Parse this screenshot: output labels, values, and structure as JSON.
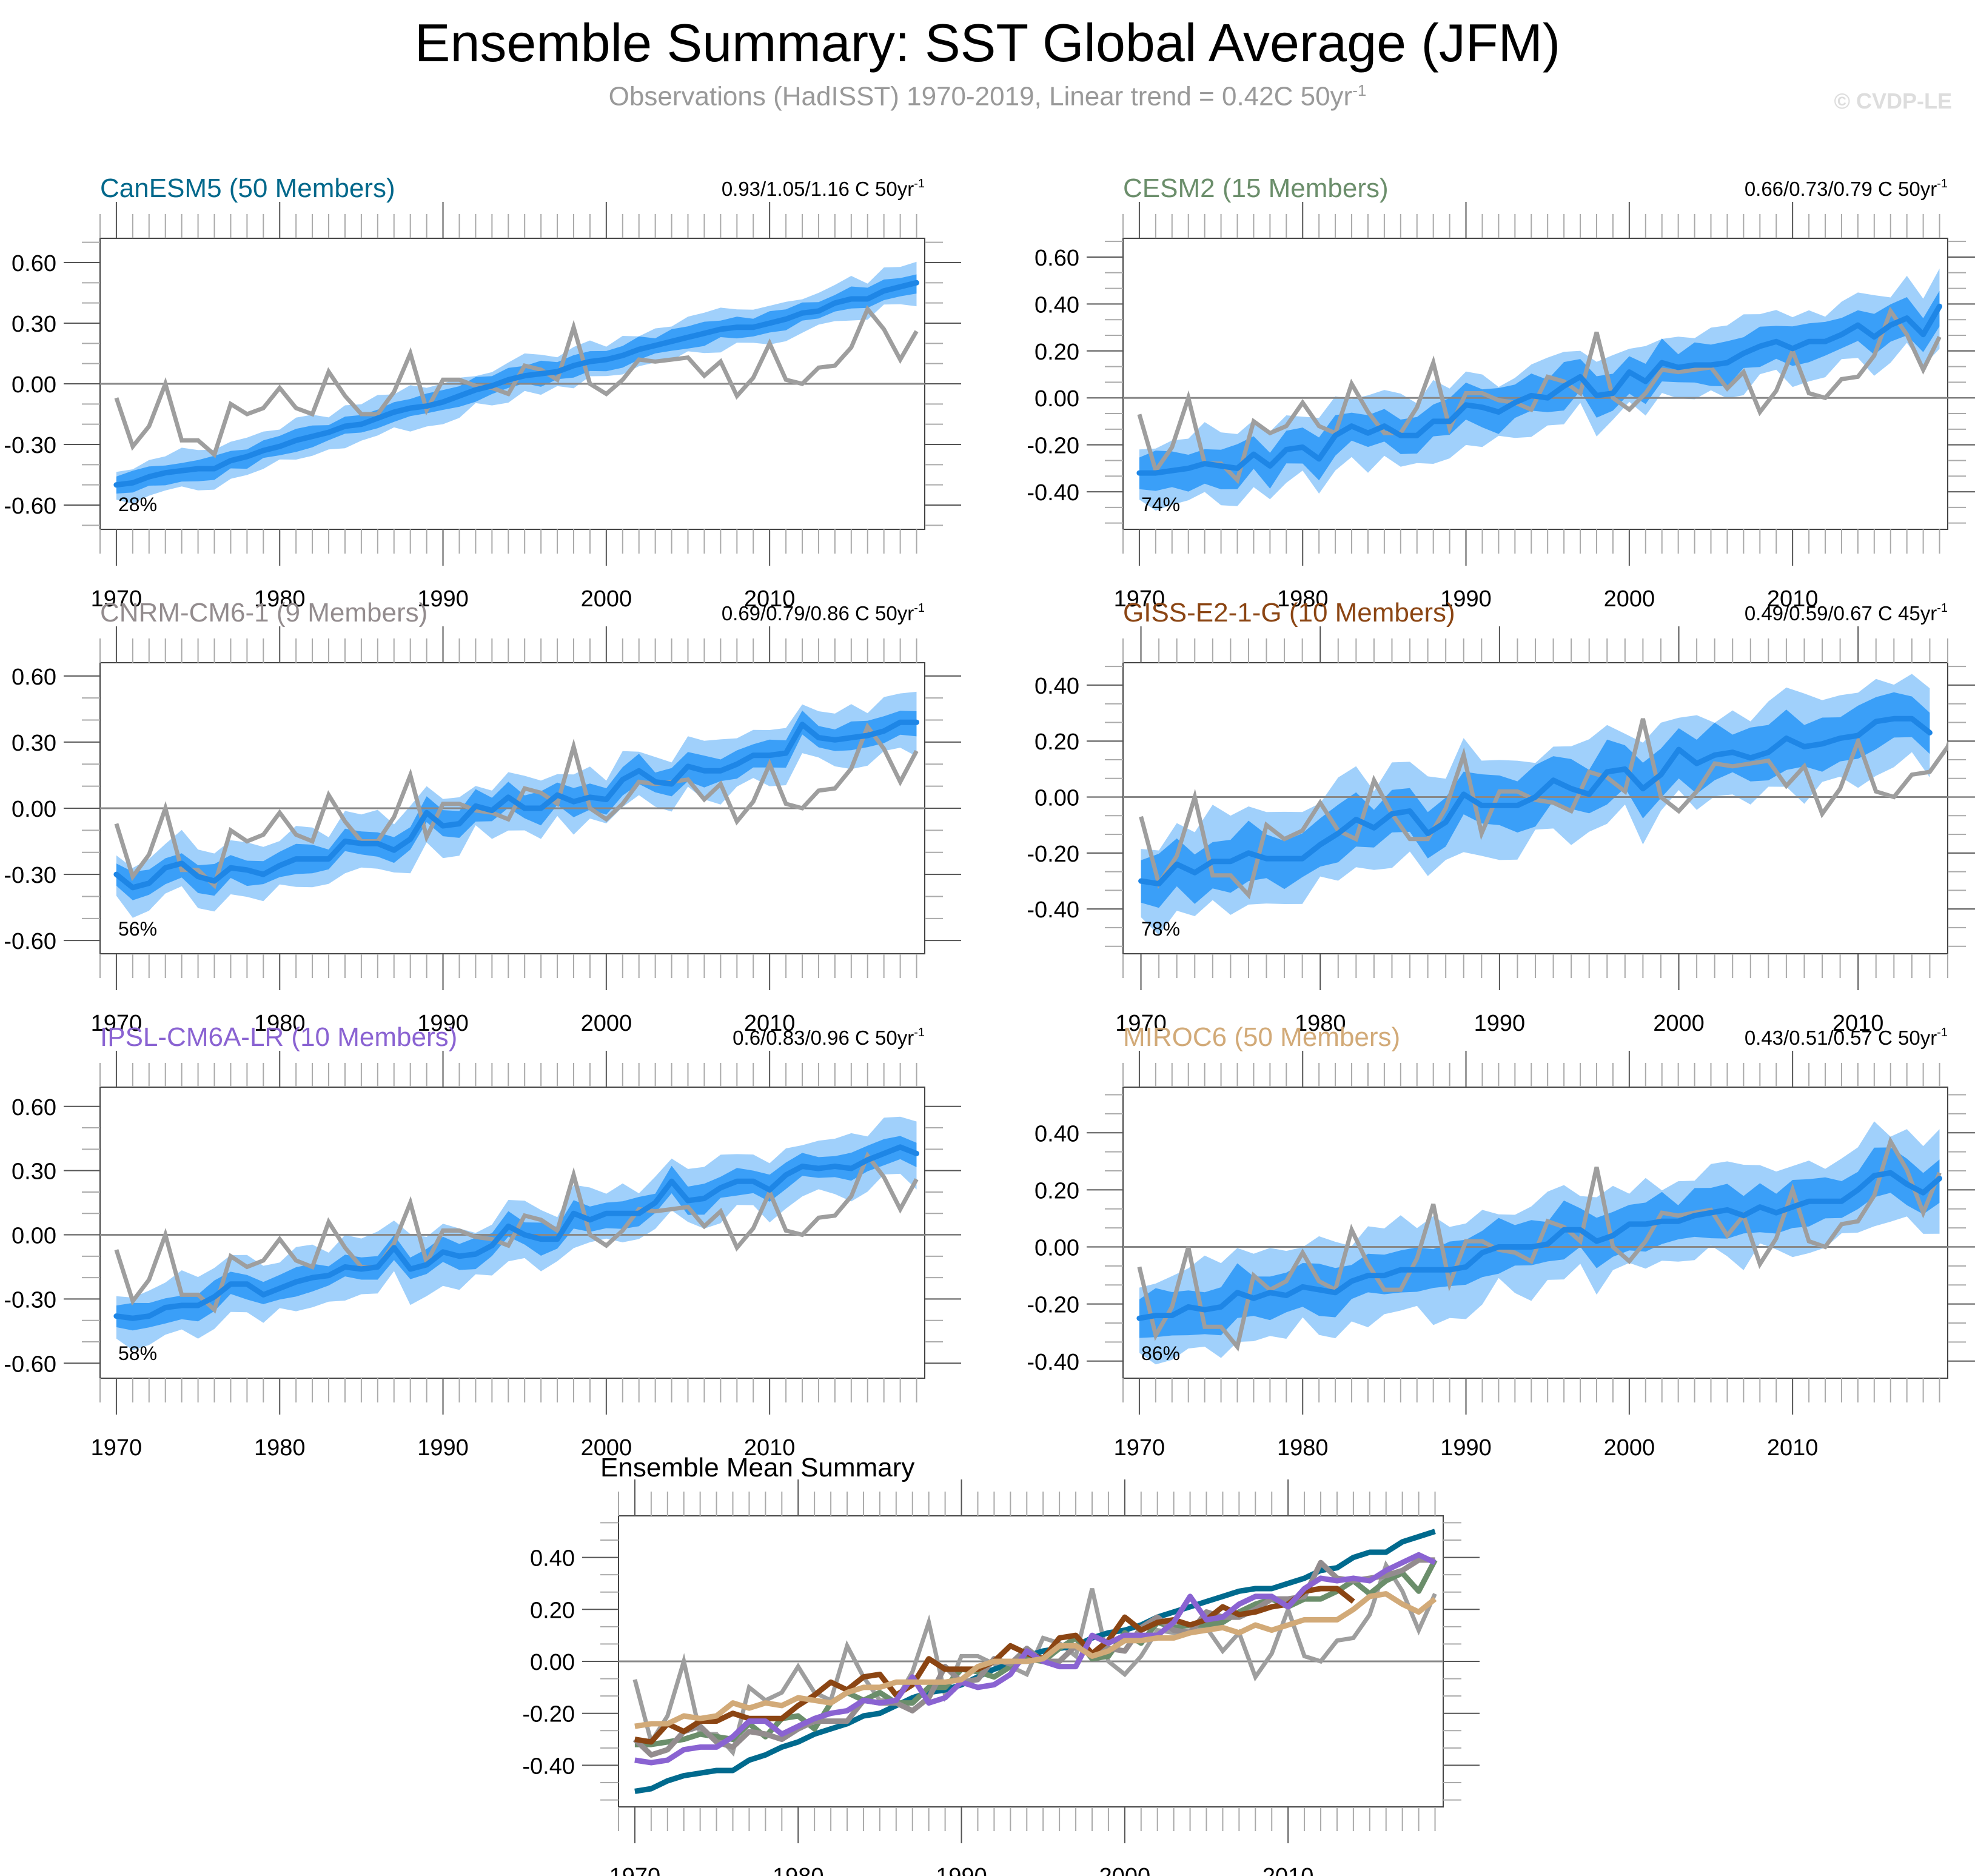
{
  "header": {
    "title": "Ensemble Summary: SST Global Average (JFM)",
    "subtitle_main": "Observations (HadISST) 1970-2019, Linear trend = 0.42C 50yr",
    "subtitle_sup": "-1",
    "watermark": "© CVDP-LE"
  },
  "chart_data": {
    "type": "line",
    "observations": {
      "name": "HadISST",
      "color": "#9e9e9e",
      "x_start": 1970,
      "values": [
        -0.07,
        -0.31,
        -0.21,
        0.0,
        -0.28,
        -0.28,
        -0.35,
        -0.1,
        -0.15,
        -0.12,
        -0.02,
        -0.12,
        -0.15,
        0.06,
        -0.06,
        -0.15,
        -0.15,
        -0.04,
        0.15,
        -0.13,
        0.02,
        0.02,
        -0.01,
        -0.02,
        -0.05,
        0.09,
        0.07,
        0.02,
        0.28,
        0.0,
        -0.05,
        0.02,
        0.12,
        0.11,
        0.12,
        0.13,
        0.04,
        0.11,
        -0.06,
        0.03,
        0.2,
        0.02,
        0.0,
        0.08,
        0.09,
        0.18,
        0.37,
        0.27,
        0.12,
        0.26
      ]
    },
    "band_colors": {
      "outer": "#a0d0fb",
      "inner": "#3a9ff8",
      "mean": "#1e86e6",
      "zero": "#888888"
    },
    "panels": [
      {
        "title": "CanESM5 (50 Members)",
        "title_color": "#00688b",
        "trend": "0.93/1.05/1.16 C 50yr",
        "trend_sup": "-1",
        "percent": "28%",
        "xlim": [
          1969,
          2019.5
        ],
        "ylim": [
          -0.72,
          0.72
        ],
        "yticks": [
          -0.6,
          -0.3,
          0.0,
          0.3,
          0.6
        ],
        "ytick_labels": [
          "-0.60",
          "-0.30",
          "0.00",
          "0.30",
          "0.60"
        ],
        "xticks": [
          1970,
          1980,
          1990,
          2000,
          2010
        ],
        "xtick_labels": [
          "1970",
          "1980",
          "1990",
          "2000",
          "2010"
        ],
        "x_start": 1970,
        "mean": [
          -0.5,
          -0.49,
          -0.46,
          -0.44,
          -0.43,
          -0.42,
          -0.42,
          -0.38,
          -0.36,
          -0.33,
          -0.31,
          -0.28,
          -0.26,
          -0.24,
          -0.21,
          -0.2,
          -0.17,
          -0.14,
          -0.12,
          -0.11,
          -0.09,
          -0.06,
          -0.03,
          -0.01,
          0.02,
          0.04,
          0.05,
          0.06,
          0.09,
          0.11,
          0.12,
          0.14,
          0.17,
          0.19,
          0.21,
          0.23,
          0.25,
          0.27,
          0.28,
          0.28,
          0.3,
          0.32,
          0.35,
          0.36,
          0.4,
          0.42,
          0.42,
          0.46,
          0.48,
          0.5
        ],
        "inner_half": 0.05,
        "outer_half": 0.09
      },
      {
        "title": "CESM2 (15 Members)",
        "title_color": "#6b8e6b",
        "trend": "0.66/0.73/0.79 C 50yr",
        "trend_sup": "-1",
        "percent": "74%",
        "xlim": [
          1969,
          2019.5
        ],
        "ylim": [
          -0.56,
          0.68
        ],
        "yticks": [
          -0.4,
          -0.2,
          0.0,
          0.2,
          0.4,
          0.6
        ],
        "ytick_labels": [
          "-0.40",
          "-0.20",
          "0.00",
          "0.20",
          "0.40",
          "0.60"
        ],
        "xticks": [
          1970,
          1980,
          1990,
          2000,
          2010
        ],
        "xtick_labels": [
          "1970",
          "1980",
          "1990",
          "2000",
          "2010"
        ],
        "x_start": 1970,
        "mean": [
          -0.32,
          -0.32,
          -0.31,
          -0.3,
          -0.28,
          -0.29,
          -0.3,
          -0.24,
          -0.29,
          -0.22,
          -0.21,
          -0.26,
          -0.16,
          -0.12,
          -0.15,
          -0.12,
          -0.16,
          -0.16,
          -0.1,
          -0.1,
          -0.03,
          -0.04,
          -0.06,
          -0.02,
          0.01,
          0.0,
          0.05,
          0.09,
          0.01,
          0.02,
          0.11,
          0.07,
          0.15,
          0.13,
          0.14,
          0.14,
          0.15,
          0.19,
          0.22,
          0.24,
          0.21,
          0.24,
          0.24,
          0.27,
          0.31,
          0.26,
          0.31,
          0.34,
          0.27,
          0.39
        ],
        "inner_half": 0.08,
        "outer_half": 0.14
      },
      {
        "title": "CNRM-CM6-1 (9 Members)",
        "title_color": "#938c8e",
        "trend": "0.69/0.79/0.86 C 50yr",
        "trend_sup": "-1",
        "percent": "56%",
        "xlim": [
          1969,
          2019.5
        ],
        "ylim": [
          -0.66,
          0.66
        ],
        "yticks": [
          -0.6,
          -0.3,
          0.0,
          0.3,
          0.6
        ],
        "ytick_labels": [
          "-0.60",
          "-0.30",
          "0.00",
          "0.30",
          "0.60"
        ],
        "xticks": [
          1970,
          1980,
          1990,
          2000,
          2010
        ],
        "xtick_labels": [
          "1970",
          "1980",
          "1990",
          "2000",
          "2010"
        ],
        "x_start": 1970,
        "mean": [
          -0.3,
          -0.36,
          -0.34,
          -0.27,
          -0.25,
          -0.31,
          -0.33,
          -0.27,
          -0.28,
          -0.3,
          -0.26,
          -0.23,
          -0.23,
          -0.23,
          -0.15,
          -0.16,
          -0.16,
          -0.19,
          -0.14,
          -0.02,
          -0.08,
          -0.07,
          0.01,
          -0.01,
          0.05,
          0.0,
          0.0,
          0.06,
          0.03,
          0.05,
          0.04,
          0.13,
          0.17,
          0.12,
          0.11,
          0.19,
          0.17,
          0.17,
          0.2,
          0.24,
          0.24,
          0.25,
          0.38,
          0.32,
          0.31,
          0.32,
          0.33,
          0.35,
          0.39,
          0.39
        ],
        "inner_half": 0.06,
        "outer_half": 0.12
      },
      {
        "title": "GISS-E2-1-G (10 Members)",
        "title_color": "#8b4513",
        "trend": "0.49/0.59/0.67 C 45yr",
        "trend_sup": "-1",
        "percent": "78%",
        "xlim": [
          1969,
          2015
        ],
        "ylim": [
          -0.56,
          0.48
        ],
        "yticks": [
          -0.4,
          -0.2,
          0.0,
          0.2,
          0.4
        ],
        "ytick_labels": [
          "-0.40",
          "-0.20",
          "0.00",
          "0.20",
          "0.40"
        ],
        "xticks": [
          1970,
          1980,
          1990,
          2000,
          2010
        ],
        "xtick_labels": [
          "1970",
          "1980",
          "1990",
          "2000",
          "2010"
        ],
        "x_start": 1970,
        "mean": [
          -0.3,
          -0.31,
          -0.24,
          -0.27,
          -0.23,
          -0.23,
          -0.2,
          -0.22,
          -0.22,
          -0.22,
          -0.17,
          -0.13,
          -0.08,
          -0.11,
          -0.06,
          -0.05,
          -0.13,
          -0.09,
          0.01,
          -0.03,
          -0.03,
          -0.03,
          0.0,
          0.06,
          0.03,
          0.01,
          0.09,
          0.1,
          0.03,
          0.08,
          0.17,
          0.12,
          0.15,
          0.16,
          0.14,
          0.16,
          0.21,
          0.18,
          0.19,
          0.21,
          0.22,
          0.27,
          0.28,
          0.28,
          0.23
        ],
        "inner_half": 0.09,
        "outer_half": 0.16
      },
      {
        "title": "IPSL-CM6A-LR (10 Members)",
        "title_color": "#8a63d2",
        "trend": "0.6/0.83/0.96 C 50yr",
        "trend_sup": "-1",
        "percent": "58%",
        "xlim": [
          1969,
          2019.5
        ],
        "ylim": [
          -0.67,
          0.69
        ],
        "yticks": [
          -0.6,
          -0.3,
          0.0,
          0.3,
          0.6
        ],
        "ytick_labels": [
          "-0.60",
          "-0.30",
          "0.00",
          "0.30",
          "0.60"
        ],
        "xticks": [
          1970,
          1980,
          1990,
          2000,
          2010
        ],
        "xtick_labels": [
          "1970",
          "1980",
          "1990",
          "2000",
          "2010"
        ],
        "x_start": 1970,
        "mean": [
          -0.38,
          -0.39,
          -0.38,
          -0.34,
          -0.33,
          -0.33,
          -0.29,
          -0.23,
          -0.23,
          -0.28,
          -0.25,
          -0.22,
          -0.2,
          -0.19,
          -0.15,
          -0.16,
          -0.15,
          -0.06,
          -0.16,
          -0.14,
          -0.08,
          -0.1,
          -0.09,
          -0.05,
          0.04,
          0.0,
          -0.02,
          -0.02,
          0.1,
          0.07,
          0.1,
          0.1,
          0.1,
          0.15,
          0.25,
          0.16,
          0.17,
          0.22,
          0.25,
          0.25,
          0.21,
          0.28,
          0.32,
          0.31,
          0.32,
          0.31,
          0.35,
          0.38,
          0.41,
          0.38
        ],
        "inner_half": 0.06,
        "outer_half": 0.13
      },
      {
        "title": "MIROC6 (50 Members)",
        "title_color": "#d2aa78",
        "trend": "0.43/0.51/0.57 C 50yr",
        "trend_sup": "-1",
        "percent": "86%",
        "xlim": [
          1969,
          2019.5
        ],
        "ylim": [
          -0.46,
          0.56
        ],
        "yticks": [
          -0.4,
          -0.2,
          0.0,
          0.2,
          0.4
        ],
        "ytick_labels": [
          "-0.40",
          "-0.20",
          "0.00",
          "0.20",
          "0.40"
        ],
        "xticks": [
          1970,
          1980,
          1990,
          2000,
          2010
        ],
        "xtick_labels": [
          "1970",
          "1980",
          "1990",
          "2000",
          "2010"
        ],
        "x_start": 1970,
        "mean": [
          -0.25,
          -0.24,
          -0.24,
          -0.21,
          -0.22,
          -0.21,
          -0.16,
          -0.18,
          -0.16,
          -0.17,
          -0.14,
          -0.15,
          -0.16,
          -0.12,
          -0.1,
          -0.1,
          -0.08,
          -0.08,
          -0.08,
          -0.08,
          -0.07,
          -0.02,
          0.0,
          0.0,
          0.0,
          0.01,
          0.06,
          0.06,
          0.02,
          0.04,
          0.08,
          0.08,
          0.09,
          0.09,
          0.11,
          0.12,
          0.13,
          0.11,
          0.14,
          0.12,
          0.14,
          0.16,
          0.16,
          0.16,
          0.2,
          0.25,
          0.26,
          0.22,
          0.19,
          0.24
        ],
        "inner_half": 0.08,
        "outer_half": 0.15
      }
    ],
    "summary": {
      "title": "Ensemble Mean Summary",
      "xlim": [
        1969,
        2019.5
      ],
      "ylim": [
        -0.56,
        0.56
      ],
      "yticks": [
        -0.4,
        -0.2,
        0.0,
        0.2,
        0.4
      ],
      "ytick_labels": [
        "-0.40",
        "-0.20",
        "0.00",
        "0.20",
        "0.40"
      ],
      "xticks": [
        1970,
        1980,
        1990,
        2000,
        2010
      ],
      "xtick_labels": [
        "1970",
        "1980",
        "1990",
        "2000",
        "2010"
      ],
      "series_colors": [
        "#006a8e",
        "#6b8e6b",
        "#938c8e",
        "#8b4513",
        "#8a63d2",
        "#d2aa78"
      ]
    }
  }
}
